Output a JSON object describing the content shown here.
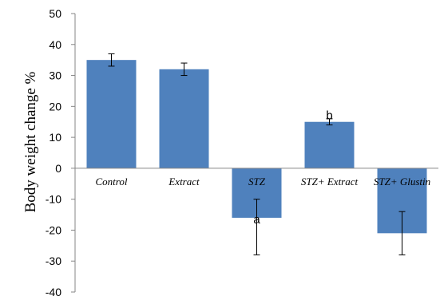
{
  "chart_data": {
    "type": "bar",
    "categories": [
      "Control",
      "Extract",
      "STZ",
      "STZ+ Extract",
      "STZ+ Glustin"
    ],
    "values": [
      35,
      32,
      -16,
      15,
      -21
    ],
    "error_low": [
      33,
      30,
      -28,
      14,
      -28
    ],
    "error_high": [
      37,
      34,
      -10,
      16,
      -14
    ],
    "annotations": [
      {
        "category": "STZ",
        "label": "a"
      },
      {
        "category": "STZ+ Extract",
        "label": "b"
      }
    ],
    "ylabel": "Body weight change %",
    "ylim": [
      -40,
      50
    ],
    "yticks": [
      -40,
      -30,
      -20,
      -10,
      0,
      10,
      20,
      30,
      40,
      50
    ],
    "grid": false,
    "bar_color": "#4f81bd"
  }
}
